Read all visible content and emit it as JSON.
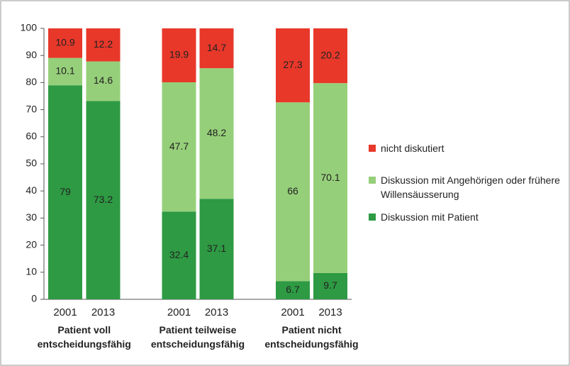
{
  "chart_data": {
    "type": "stacked_bar",
    "categories": [
      "2001",
      "2013",
      "2001",
      "2013",
      "2001",
      "2013"
    ],
    "groups": [
      "Patient voll entscheidungsfähig",
      "Patient teilweise entscheidungsfähig",
      "Patient nicht entscheidungsfähig"
    ],
    "series": [
      {
        "name": "Diskussion mit Patient",
        "color": "#2e9a43",
        "values": [
          79,
          73.2,
          32.4,
          37.1,
          6.7,
          9.7
        ]
      },
      {
        "name": "Diskussion mit Angehörigen oder frühere Willensäusserung",
        "color": "#96cf7a",
        "values": [
          10.1,
          14.6,
          47.7,
          48.2,
          66,
          70.1
        ]
      },
      {
        "name": "nicht diskutiert",
        "color": "#e8382a",
        "values": [
          10.9,
          12.2,
          19.9,
          14.7,
          27.3,
          20.2
        ]
      }
    ],
    "ylim": [
      0,
      100
    ],
    "yticks": [
      0,
      10,
      20,
      30,
      40,
      50,
      60,
      70,
      80,
      90,
      100
    ],
    "grid": false
  }
}
